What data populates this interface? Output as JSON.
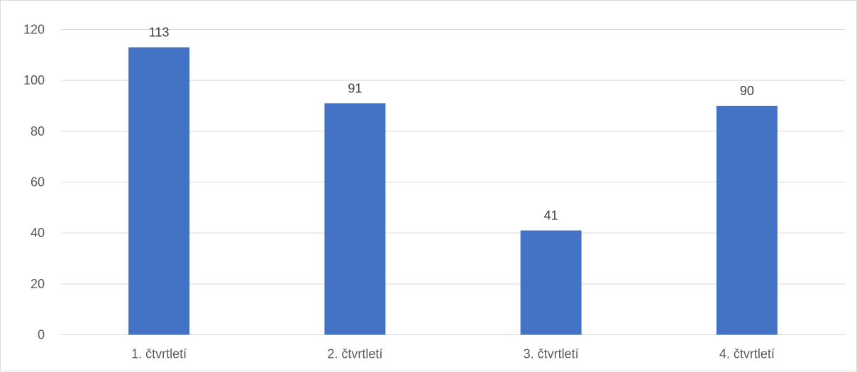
{
  "chart_data": {
    "type": "bar",
    "title": "",
    "xlabel": "",
    "ylabel": "",
    "categories": [
      "1. čtvrtletí",
      "2. čtvrtletí",
      "3. čtvrtletí",
      "4. čtvrtletí"
    ],
    "series": [
      {
        "values": [
          113,
          91,
          41,
          90
        ],
        "color": "#4472c4"
      }
    ],
    "data_labels": [
      "113",
      "91",
      "41",
      "90"
    ],
    "ylim": [
      0,
      120
    ],
    "yticks": [
      "0",
      "20",
      "40",
      "60",
      "80",
      "100",
      "120"
    ],
    "grid": true,
    "legend": "none",
    "gridline_color": "#d9d9d9"
  }
}
